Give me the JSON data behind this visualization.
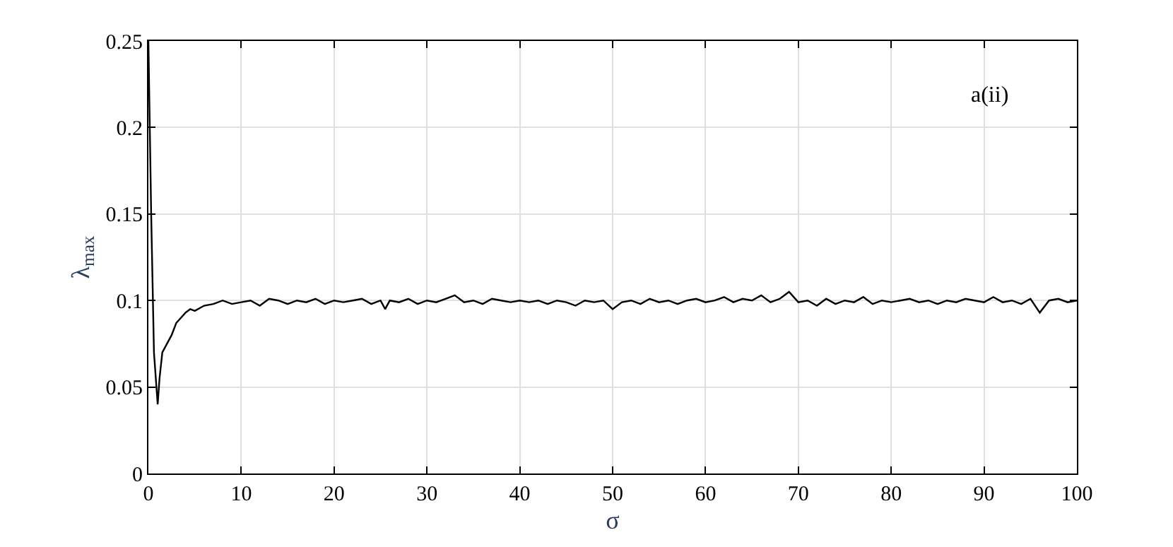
{
  "chart_data": {
    "type": "line",
    "xlabel": "σ",
    "ylabel": "λ$_{max}$",
    "annotations": [
      "a(ii)"
    ],
    "grid": true,
    "marker": "none",
    "line_style": "solid",
    "xlim": [
      0,
      100
    ],
    "xticks": [
      0,
      10,
      20,
      30,
      40,
      50,
      60,
      70,
      80,
      90,
      100
    ],
    "ylim": [
      0,
      0.25
    ],
    "yticks": [
      0,
      0.05,
      0.1,
      0.15,
      0.2,
      0.25
    ],
    "series": [
      {
        "color": "#000000",
        "x": [
          0,
          0.3,
          0.6,
          1.0,
          1.2,
          1.5,
          2,
          2.5,
          3,
          3.5,
          4,
          4.5,
          5,
          6,
          7,
          8,
          9,
          10,
          11,
          12,
          13,
          14,
          15,
          16,
          17,
          18,
          19,
          20,
          21,
          22,
          23,
          24,
          25,
          25.5,
          26,
          27,
          28,
          29,
          30,
          31,
          32,
          33,
          34,
          35,
          36,
          37,
          38,
          39,
          40,
          41,
          42,
          43,
          44,
          45,
          46,
          47,
          48,
          49,
          50,
          51,
          52,
          53,
          54,
          55,
          56,
          57,
          58,
          59,
          60,
          61,
          62,
          63,
          64,
          65,
          66,
          67,
          68,
          69,
          70,
          71,
          72,
          73,
          74,
          75,
          76,
          77,
          78,
          79,
          80,
          81,
          82,
          83,
          84,
          85,
          86,
          87,
          88,
          89,
          90,
          91,
          92,
          93,
          94,
          95,
          96,
          97,
          98,
          99,
          100
        ],
        "values": [
          0.25,
          0.15,
          0.07,
          0.04,
          0.055,
          0.07,
          0.075,
          0.08,
          0.087,
          0.09,
          0.093,
          0.095,
          0.094,
          0.097,
          0.098,
          0.1,
          0.098,
          0.099,
          0.1,
          0.097,
          0.101,
          0.1,
          0.098,
          0.1,
          0.099,
          0.101,
          0.098,
          0.1,
          0.099,
          0.1,
          0.101,
          0.098,
          0.1,
          0.095,
          0.1,
          0.099,
          0.101,
          0.098,
          0.1,
          0.099,
          0.101,
          0.103,
          0.099,
          0.1,
          0.098,
          0.101,
          0.1,
          0.099,
          0.1,
          0.099,
          0.1,
          0.098,
          0.1,
          0.099,
          0.097,
          0.1,
          0.099,
          0.1,
          0.095,
          0.099,
          0.1,
          0.098,
          0.101,
          0.099,
          0.1,
          0.098,
          0.1,
          0.101,
          0.099,
          0.1,
          0.102,
          0.099,
          0.101,
          0.1,
          0.103,
          0.099,
          0.101,
          0.105,
          0.099,
          0.1,
          0.097,
          0.101,
          0.098,
          0.1,
          0.099,
          0.102,
          0.098,
          0.1,
          0.099,
          0.1,
          0.101,
          0.099,
          0.1,
          0.098,
          0.1,
          0.099,
          0.101,
          0.1,
          0.099,
          0.102,
          0.099,
          0.1,
          0.098,
          0.101,
          0.093,
          0.1,
          0.101,
          0.099,
          0.1
        ]
      }
    ]
  }
}
